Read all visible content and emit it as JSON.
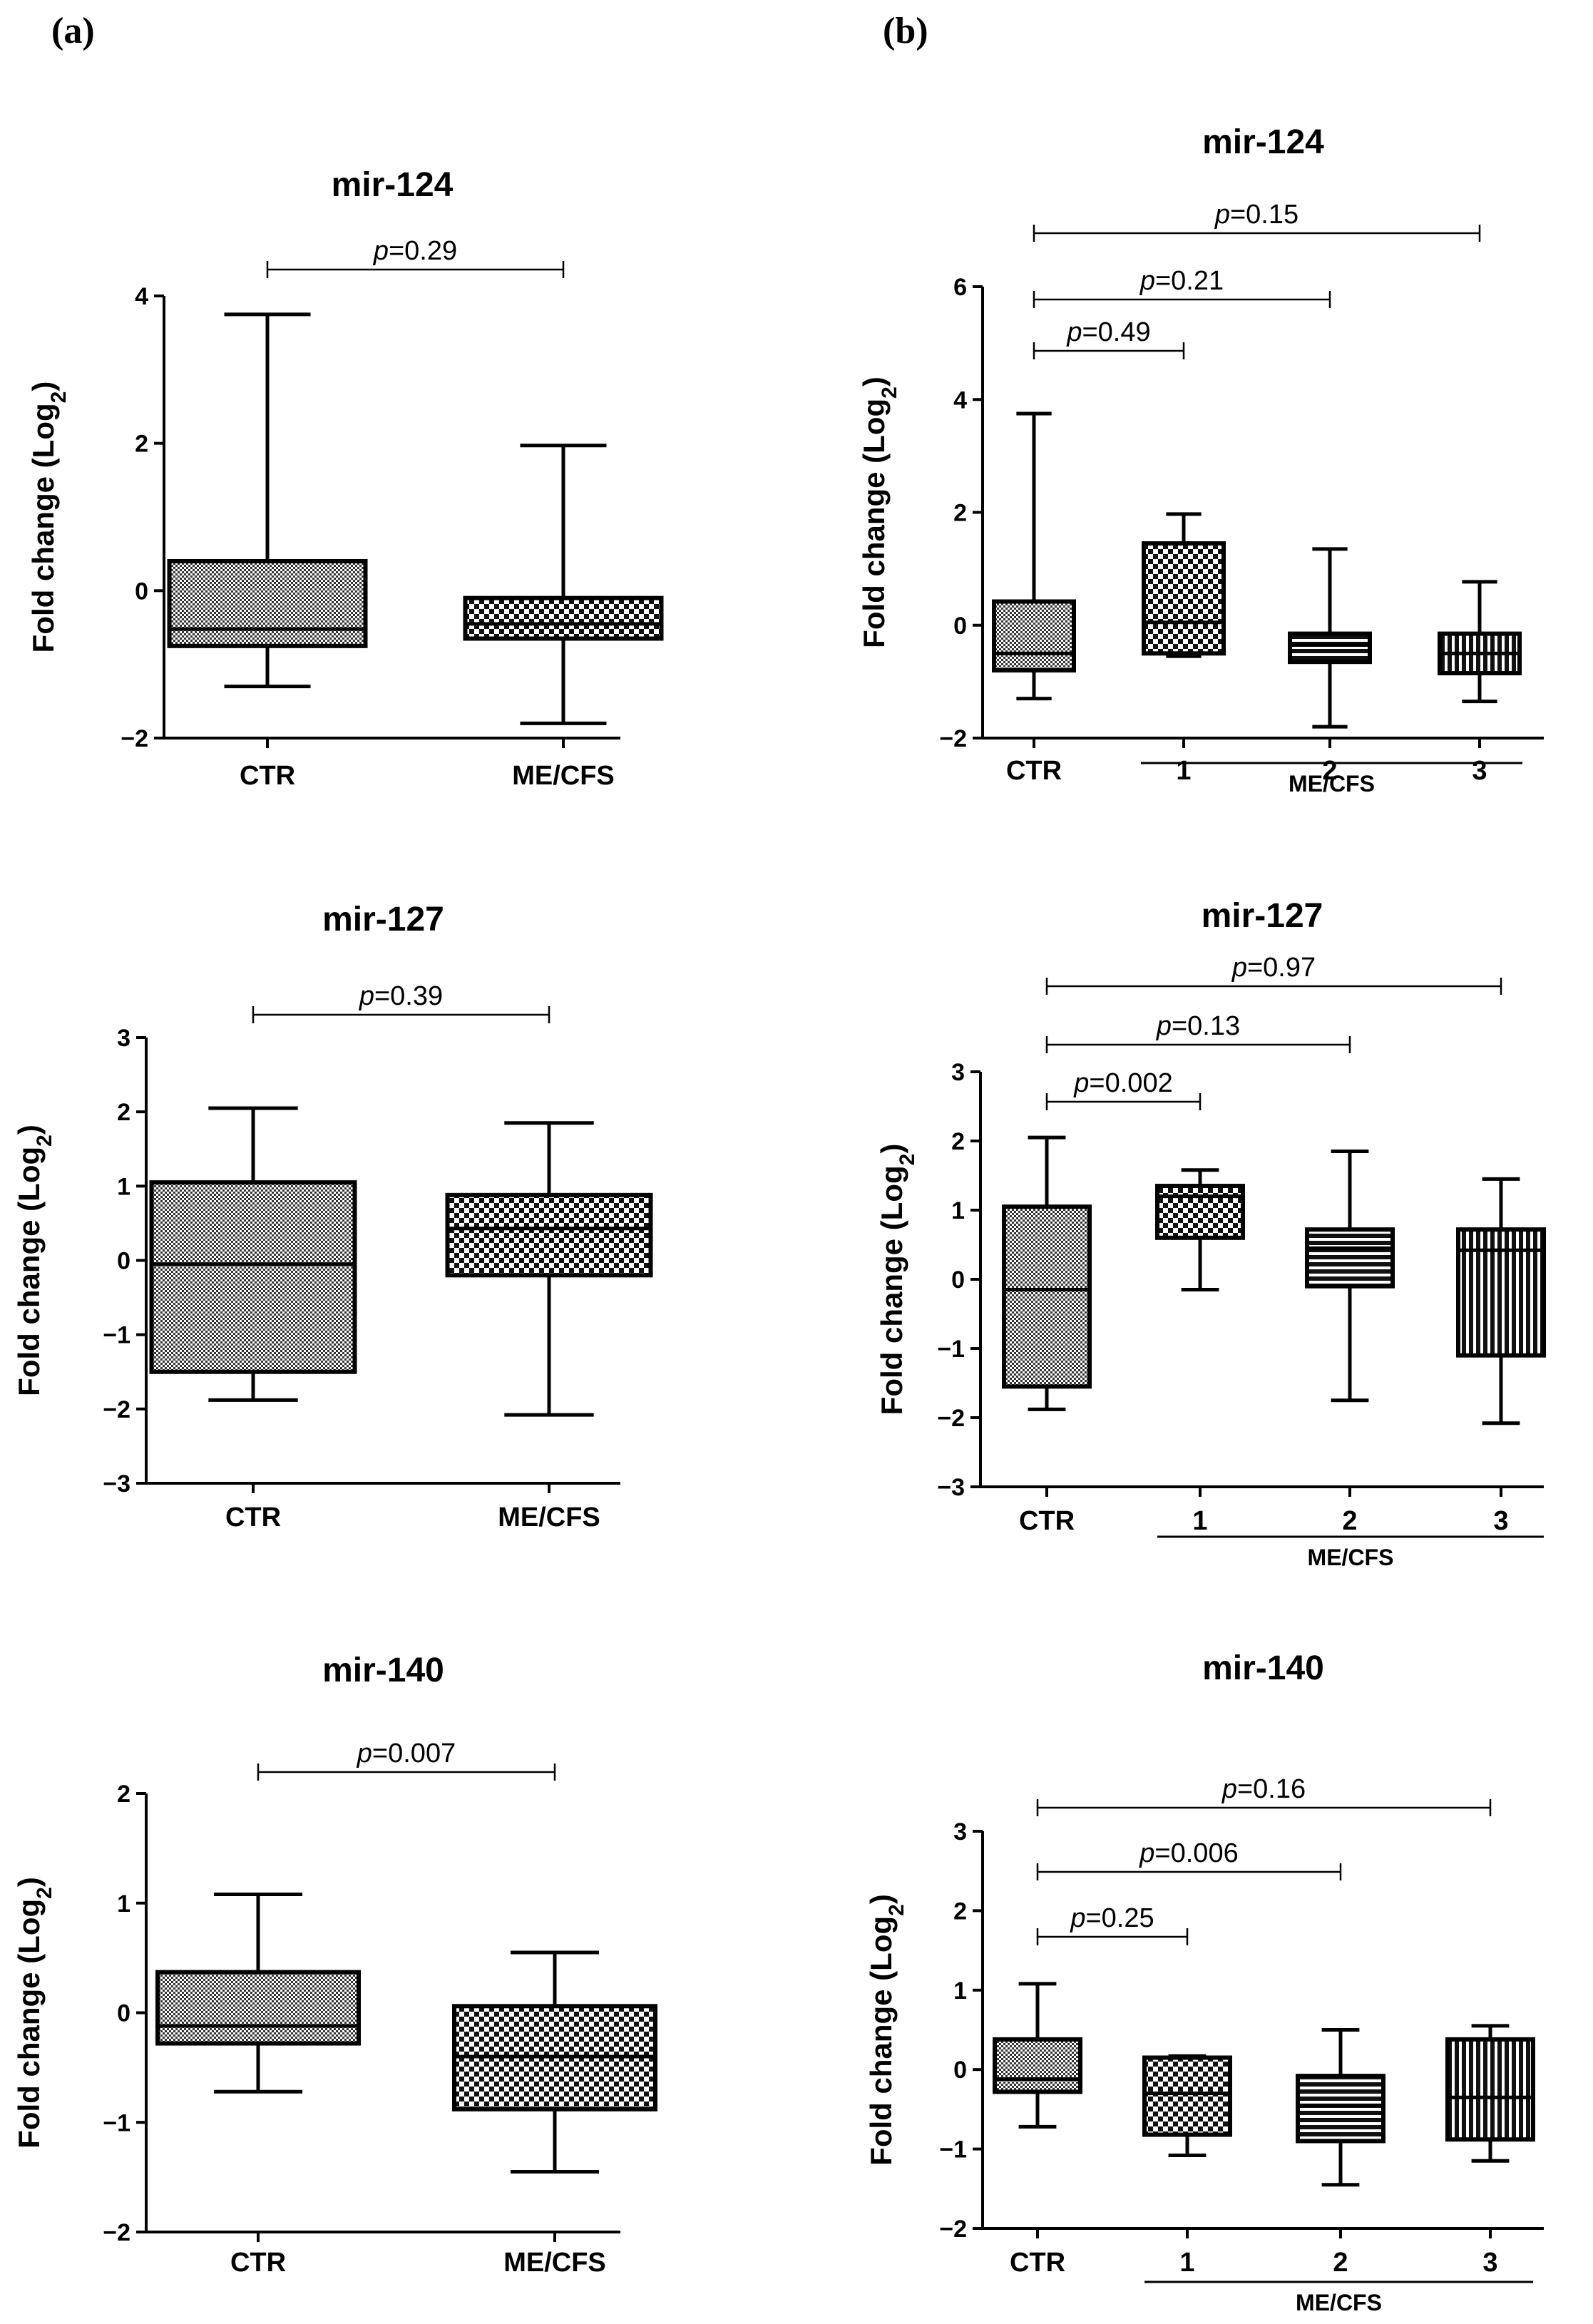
{
  "panels": {
    "a": "(a)",
    "b": "(b)"
  },
  "chart_data": [
    {
      "type": "box",
      "panel": "a",
      "title": "mir-124",
      "ylabel": "Fold change (Log",
      "ylabel_sub": "2",
      "ylabel_close": ")",
      "ylim": [
        -2,
        4
      ],
      "yticks": [
        -2,
        0,
        2,
        4
      ],
      "yticklabels": [
        "−2",
        "0",
        "2",
        "4"
      ],
      "categories": [
        "CTR",
        "ME/CFS"
      ],
      "group_label": null,
      "boxes": [
        {
          "name": "CTR",
          "min": -1.3,
          "q1": -0.75,
          "median": -0.52,
          "q3": 0.4,
          "max": 3.75,
          "pattern": "fine"
        },
        {
          "name": "ME/CFS",
          "min": -1.8,
          "q1": -0.65,
          "median": -0.45,
          "q3": -0.1,
          "max": 1.97,
          "pattern": "check"
        }
      ],
      "comparisons": [
        {
          "from": 0,
          "to": 1,
          "y": 4.2,
          "italic": "p",
          "text": "=0.29"
        }
      ]
    },
    {
      "type": "box",
      "panel": "b",
      "title": "mir-124",
      "ylabel": "Fold change (Log",
      "ylabel_sub": "2",
      "ylabel_close": ")",
      "ylim": [
        -2,
        6
      ],
      "yticks": [
        -2,
        0,
        2,
        4,
        6
      ],
      "yticklabels": [
        "−2",
        "0",
        "2",
        "4",
        "6"
      ],
      "categories": [
        "CTR",
        "1",
        "2",
        "3"
      ],
      "group_label": "ME/CFS",
      "boxes": [
        {
          "name": "CTR",
          "min": -1.3,
          "q1": -0.8,
          "median": -0.5,
          "q3": 0.42,
          "max": 3.75,
          "pattern": "fine"
        },
        {
          "name": "1",
          "min": -0.55,
          "q1": -0.5,
          "median": 0.05,
          "q3": 1.45,
          "max": 1.97,
          "pattern": "check"
        },
        {
          "name": "2",
          "min": -1.8,
          "q1": -0.65,
          "median": -0.35,
          "q3": -0.15,
          "max": 1.35,
          "pattern": "hlines"
        },
        {
          "name": "3",
          "min": -1.35,
          "q1": -0.85,
          "median": -0.5,
          "q3": -0.15,
          "max": 0.77,
          "pattern": "vlines"
        }
      ],
      "comparisons": [
        {
          "from": 0,
          "to": 1,
          "y": 4.8,
          "italic": "p",
          "text": "=0.49"
        },
        {
          "from": 0,
          "to": 2,
          "y": 5.8,
          "italic": "p",
          "text": "=0.21"
        },
        {
          "from": 0,
          "to": 3,
          "y": 7.0,
          "italic": "p",
          "text": "=0.15"
        }
      ]
    },
    {
      "type": "box",
      "panel": "a",
      "title": "mir-127",
      "ylabel": "Fold change (Log",
      "ylabel_sub": "2",
      "ylabel_close": ")",
      "ylim": [
        -3,
        3
      ],
      "yticks": [
        -3,
        -2,
        -1,
        0,
        1,
        2,
        3
      ],
      "yticklabels": [
        "−3",
        "−2",
        "−1",
        "0",
        "1",
        "2",
        "3"
      ],
      "categories": [
        "CTR",
        "ME/CFS"
      ],
      "group_label": null,
      "boxes": [
        {
          "name": "CTR",
          "min": -1.88,
          "q1": -1.5,
          "median": -0.05,
          "q3": 1.05,
          "max": 2.05,
          "pattern": "fine"
        },
        {
          "name": "ME/CFS",
          "min": -2.08,
          "q1": -0.2,
          "median": 0.43,
          "q3": 0.88,
          "max": 1.85,
          "pattern": "check"
        }
      ],
      "comparisons": [
        {
          "from": 0,
          "to": 1,
          "y": 3.3,
          "italic": "p",
          "text": "=0.39"
        }
      ]
    },
    {
      "type": "box",
      "panel": "b",
      "title": "mir-127",
      "ylabel": "Fold change (Log",
      "ylabel_sub": "2",
      "ylabel_close": ")",
      "ylim": [
        -3,
        3
      ],
      "yticks": [
        -3,
        -2,
        -1,
        0,
        1,
        2,
        3
      ],
      "yticklabels": [
        "−3",
        "−2",
        "−1",
        "0",
        "1",
        "2",
        "3"
      ],
      "categories": [
        "CTR",
        "1",
        "2",
        "3"
      ],
      "group_label": "ME/CFS",
      "boxes": [
        {
          "name": "CTR",
          "min": -1.88,
          "q1": -1.55,
          "median": -0.15,
          "q3": 1.05,
          "max": 2.05,
          "pattern": "fine"
        },
        {
          "name": "1",
          "min": -0.15,
          "q1": 0.6,
          "median": 1.2,
          "q3": 1.35,
          "max": 1.58,
          "pattern": "check"
        },
        {
          "name": "2",
          "min": -1.75,
          "q1": -0.1,
          "median": 0.45,
          "q3": 0.72,
          "max": 1.85,
          "pattern": "hlines"
        },
        {
          "name": "3",
          "min": -2.08,
          "q1": -1.1,
          "median": 0.42,
          "q3": 0.72,
          "max": 1.45,
          "pattern": "vlines"
        }
      ],
      "comparisons": [
        {
          "from": 0,
          "to": 1,
          "y": 3.35,
          "italic": "p",
          "text": "=0.002"
        },
        {
          "from": 0,
          "to": 2,
          "y": 3.35,
          "italic": "p",
          "text": "=0.13"
        },
        {
          "from": 0,
          "to": 3,
          "y": 3.35,
          "italic": "p",
          "text": "=0.97"
        }
      ]
    },
    {
      "type": "box",
      "panel": "a",
      "title": "mir-140",
      "ylabel": "Fold change (Log",
      "ylabel_sub": "2",
      "ylabel_close": ")",
      "ylim": [
        -2,
        2
      ],
      "yticks": [
        -2,
        -1,
        0,
        1,
        2
      ],
      "yticklabels": [
        "−2",
        "−1",
        "0",
        "1",
        "2"
      ],
      "categories": [
        "CTR",
        "ME/CFS"
      ],
      "group_label": null,
      "boxes": [
        {
          "name": "CTR",
          "min": -0.72,
          "q1": -0.28,
          "median": -0.12,
          "q3": 0.37,
          "max": 1.08,
          "pattern": "fine"
        },
        {
          "name": "ME/CFS",
          "min": -1.45,
          "q1": -0.88,
          "median": -0.4,
          "q3": 0.06,
          "max": 0.55,
          "pattern": "check"
        }
      ],
      "comparisons": [
        {
          "from": 0,
          "to": 1,
          "y": 1.88,
          "italic": "p",
          "text": "=0.007"
        }
      ]
    },
    {
      "type": "box",
      "panel": "b",
      "title": "mir-140",
      "ylabel": "Fold change (Log",
      "ylabel_sub": "2",
      "ylabel_close": ")",
      "ylim": [
        -2,
        3
      ],
      "yticks": [
        -2,
        -1,
        0,
        1,
        2,
        3
      ],
      "yticklabels": [
        "−2",
        "−1",
        "0",
        "1",
        "2",
        "3"
      ],
      "categories": [
        "CTR",
        "1",
        "2",
        "3"
      ],
      "group_label": "ME/CFS",
      "boxes": [
        {
          "name": "CTR",
          "min": -0.72,
          "q1": -0.28,
          "median": -0.12,
          "q3": 0.38,
          "max": 1.08,
          "pattern": "fine"
        },
        {
          "name": "1",
          "min": -1.08,
          "q1": -0.82,
          "median": -0.3,
          "q3": 0.15,
          "max": 0.17,
          "pattern": "check"
        },
        {
          "name": "2",
          "min": -1.45,
          "q1": -0.9,
          "median": -0.45,
          "q3": -0.08,
          "max": 0.5,
          "pattern": "hlines"
        },
        {
          "name": "3",
          "min": -1.15,
          "q1": -0.88,
          "median": -0.35,
          "q3": 0.38,
          "max": 0.55,
          "pattern": "vlines"
        }
      ],
      "comparisons": [
        {
          "from": 0,
          "to": 1,
          "y": 1.3,
          "italic": "p",
          "text": "=0.25"
        },
        {
          "from": 0,
          "to": 2,
          "y": 1.9,
          "italic": "p",
          "text": "=0.006"
        },
        {
          "from": 0,
          "to": 3,
          "y": 2.65,
          "italic": "p",
          "text": "=0.16"
        }
      ]
    }
  ]
}
